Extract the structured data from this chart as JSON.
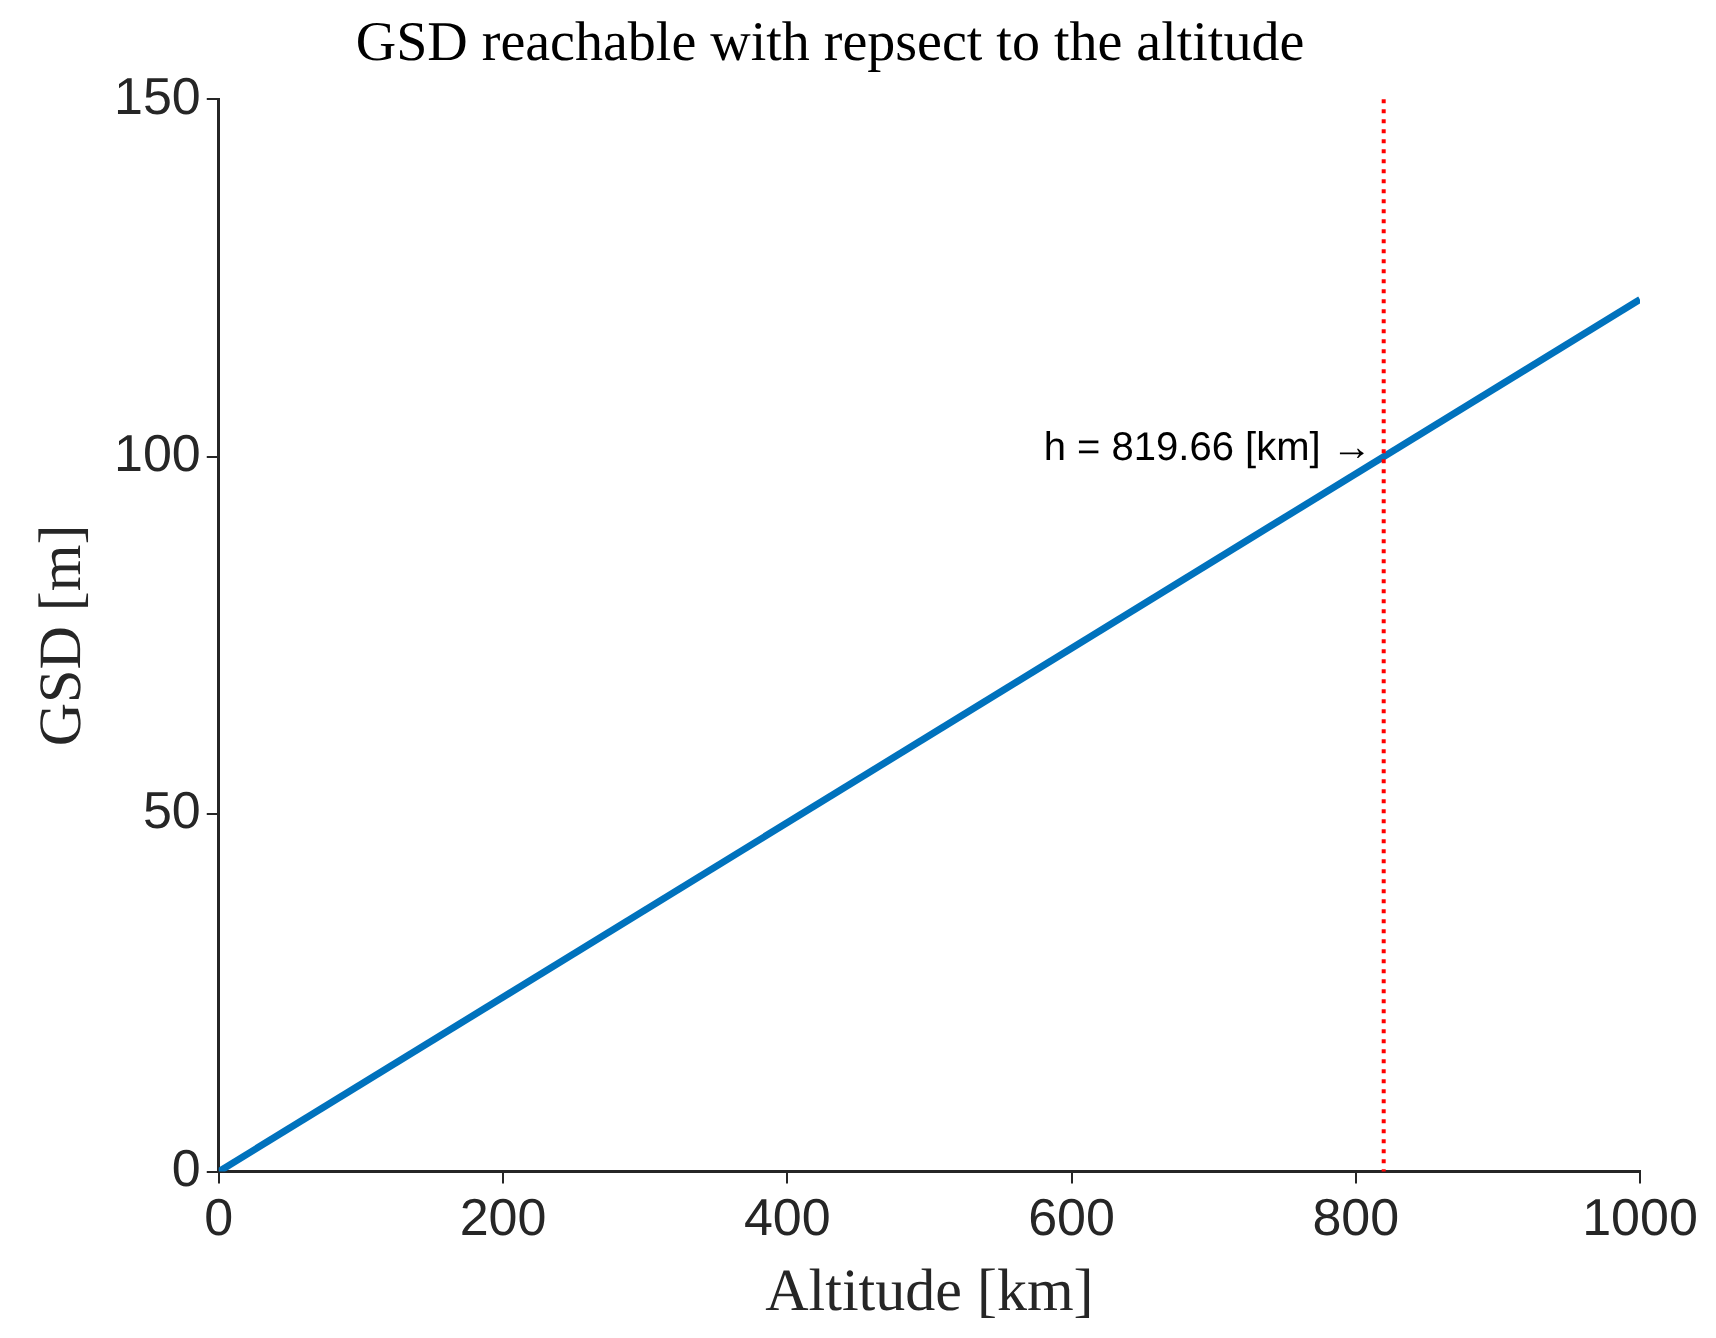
{
  "chart_data": {
    "type": "line",
    "title": "GSD reachable with repsect to the altitude",
    "xlabel": "Altitude [km]",
    "ylabel": "GSD [m]",
    "series": [
      {
        "color": "#0072bd",
        "x": [
          0,
          1000
        ],
        "values": [
          0,
          122
        ]
      }
    ],
    "xlim": [
      0,
      1000
    ],
    "xticks": [
      0,
      200,
      400,
      600,
      800,
      1000
    ],
    "ylim": [
      0,
      150
    ],
    "yticks": [
      0,
      50,
      100,
      150
    ],
    "ref_lines": [
      {
        "axis": "x",
        "value": 819.66,
        "color": "#ff0000",
        "line_style": "dotted"
      }
    ],
    "annotations": [
      {
        "text": "h = 819.66 [km] →",
        "x": 819.66,
        "y": 100
      }
    ],
    "grid": false,
    "legend": false,
    "marker": "none",
    "line_style": "solid"
  }
}
